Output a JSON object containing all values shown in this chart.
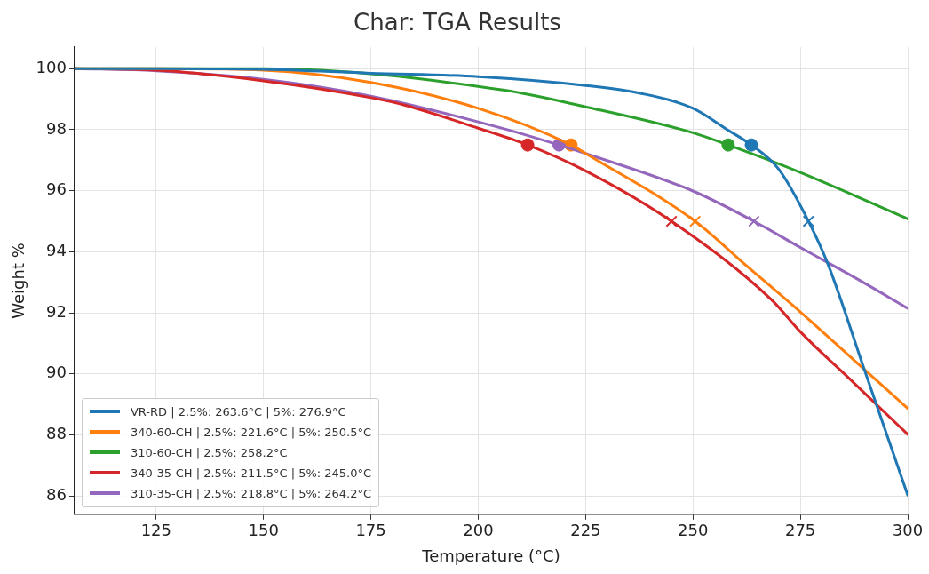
{
  "chart_data": {
    "type": "line",
    "title": "Char: TGA Results",
    "xlabel": "Temperature (°C)",
    "ylabel": "Weight %",
    "xlim": [
      106,
      300
    ],
    "xticks": [
      125,
      150,
      175,
      200,
      225,
      250,
      275,
      300
    ],
    "ylim": [
      85.4,
      100.7
    ],
    "yticks": [
      86,
      88,
      90,
      92,
      94,
      96,
      98,
      100
    ],
    "grid": true,
    "legend": "bottom left",
    "line_style": "solid",
    "series": [
      {
        "name": "VR-RD | 2.5%: 263.6°C | 5%: 276.9°C",
        "color": "#1f77b4",
        "x": [
          106,
          125,
          150,
          175,
          200,
          225,
          237.5,
          250,
          258,
          263.6,
          270,
          276.9,
          281.5,
          290,
          300
        ],
        "values": [
          100,
          100,
          99.98,
          99.85,
          99.74,
          99.45,
          99.2,
          98.7,
          98.0,
          97.5,
          96.7,
          95.0,
          93.57,
          90.1,
          86.03
        ]
      },
      {
        "name": "340-60-CH | 2.5%: 221.6°C | 5%: 250.5°C",
        "color": "#ff7f0e",
        "x": [
          106,
          125,
          150,
          175,
          200,
          221.6,
          225,
          250.5,
          262,
          275,
          287.5,
          300
        ],
        "values": [
          100,
          100,
          99.95,
          99.55,
          98.7,
          97.5,
          97.22,
          95.0,
          93.6,
          92.03,
          90.45,
          88.87
        ]
      },
      {
        "name": "310-60-CH | 2.5%: 258.2°C",
        "color": "#2ca02c",
        "x": [
          106,
          150,
          205.8,
          225,
          250,
          258.2,
          275,
          300
        ],
        "values": [
          100,
          100,
          99.3,
          98.75,
          97.9,
          97.5,
          96.6,
          95.08
        ]
      },
      {
        "name": "340-35-CH | 2.5%: 211.5°C | 5%: 245.0°C",
        "color": "#d62728",
        "x": [
          106,
          125,
          150,
          175,
          183,
          200,
          211.5,
          225,
          245,
          268.3,
          275,
          287.5,
          300
        ],
        "values": [
          100,
          99.95,
          99.6,
          99.05,
          98.8,
          98.05,
          97.5,
          96.65,
          95.0,
          92.43,
          91.38,
          89.7,
          88.02
        ]
      },
      {
        "name": "310-35-CH | 2.5%: 218.8°C | 5%: 264.2°C",
        "color": "#9467bd",
        "x": [
          106,
          125,
          150,
          175,
          205.8,
          218.8,
          225,
          250,
          264.2,
          275,
          287.5,
          300
        ],
        "values": [
          100,
          99.93,
          99.65,
          99.1,
          98.04,
          97.5,
          97.22,
          95.99,
          95.0,
          94.14,
          93.17,
          92.15
        ]
      },
      {
        "type": "scatter",
        "marker": "circle",
        "colors": [
          "#1f77b4",
          "#ff7f0e",
          "#2ca02c",
          "#d62728",
          "#9467bd"
        ],
        "x": [
          263.6,
          221.6,
          258.2,
          211.5,
          218.8
        ],
        "values": [
          97.5,
          97.5,
          97.5,
          97.5,
          97.5
        ]
      },
      {
        "type": "scatter",
        "marker": "cross",
        "colors": [
          "#1f77b4",
          "#ff7f0e",
          "#d62728",
          "#9467bd"
        ],
        "x": [
          276.9,
          250.5,
          245.0,
          264.2
        ],
        "values": [
          95,
          95,
          95,
          95
        ]
      }
    ]
  }
}
